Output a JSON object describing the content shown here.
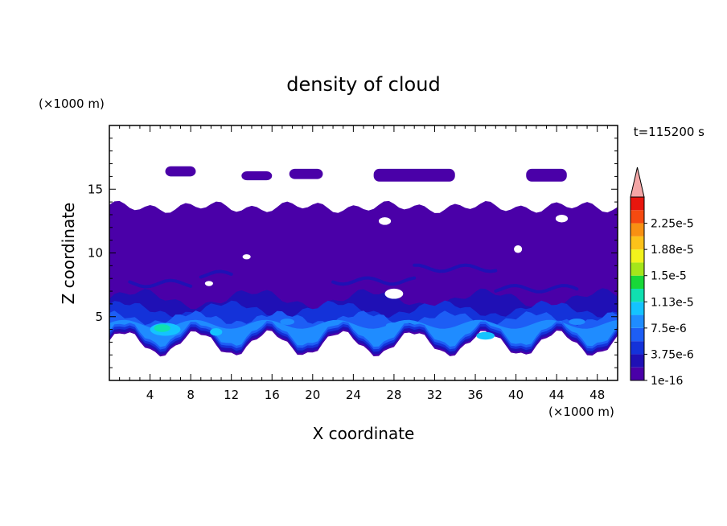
{
  "chart_data": {
    "type": "heatmap",
    "title": "density of cloud",
    "time_label": "t=115200 s",
    "xlabel": "X coordinate",
    "ylabel": "Z coordinate",
    "x_unit": "(×1000 m)",
    "y_unit": "(×1000 m)",
    "xlim": [
      0,
      50
    ],
    "ylim": [
      0,
      20
    ],
    "x_ticks": [
      4,
      8,
      12,
      16,
      20,
      24,
      28,
      32,
      36,
      40,
      44,
      48
    ],
    "y_ticks": [
      5,
      10,
      15
    ],
    "colorbar": {
      "labels": [
        "1e-16",
        "3.75e-6",
        "7.5e-6",
        "1.13e-5",
        "1.5e-5",
        "1.88e-5",
        "2.25e-5"
      ],
      "levels": [
        1e-16,
        1.875e-06,
        3.75e-06,
        5.625e-06,
        7.5e-06,
        9.375e-06,
        1.13e-05,
        1.31e-05,
        1.5e-05,
        1.69e-05,
        1.88e-05,
        2.06e-05,
        2.25e-05,
        2.44e-05
      ],
      "colors": [
        "#4a00a8",
        "#1f10b5",
        "#1432d9",
        "#1d5ef5",
        "#1f8cff",
        "#14c3ff",
        "#10e0b0",
        "#18d838",
        "#a5e61a",
        "#f2f21c",
        "#fcc21a",
        "#f89012",
        "#f54a10",
        "#e8160e"
      ],
      "extend_color": "#f4a6a6"
    },
    "regions": {
      "upper_cloud_patches": [
        {
          "x": [
            5.5,
            8.5
          ],
          "z": [
            16.0,
            16.8
          ]
        },
        {
          "x": [
            13.0,
            16.0
          ],
          "z": [
            15.7,
            16.4
          ]
        },
        {
          "x": [
            17.7,
            21.0
          ],
          "z": [
            15.8,
            16.6
          ]
        },
        {
          "x": [
            26.0,
            34.0
          ],
          "z": [
            15.6,
            16.6
          ]
        },
        {
          "x": [
            41.0,
            45.0
          ],
          "z": [
            15.6,
            16.6
          ]
        }
      ],
      "main_cloud_layer": {
        "x": [
          0,
          50
        ],
        "z_bottom_range": [
          2.0,
          3.8
        ],
        "z_top": 13.8,
        "min_density": 1e-16
      },
      "dense_band": {
        "z": [
          3.0,
          6.5
        ],
        "peak_density": 1.13e-05,
        "peak_location": {
          "x": 5.5,
          "z": 4.0
        }
      }
    }
  }
}
